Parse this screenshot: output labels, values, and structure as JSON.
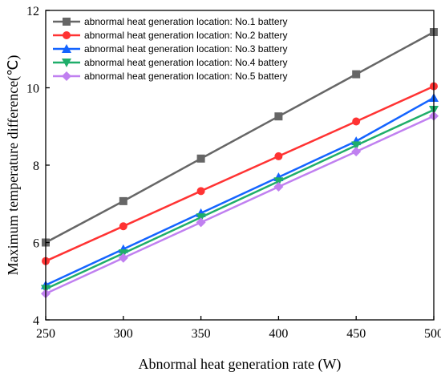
{
  "chart_data": {
    "type": "line",
    "xlabel": "Abnormal heat generation rate (W)",
    "ylabel": "Maximum temperature difference(℃)",
    "xlim": [
      250,
      500
    ],
    "ylim": [
      4,
      12
    ],
    "xticks": [
      250,
      300,
      350,
      400,
      450,
      500
    ],
    "yticks": [
      4,
      6,
      8,
      10,
      12
    ],
    "grid": false,
    "legend_position": "top-left",
    "x": [
      250,
      300,
      350,
      400,
      450,
      500
    ],
    "series": [
      {
        "name": "abnormal heat generation location: No.1 battery",
        "color": "#666666",
        "marker": "square",
        "values": [
          6.0,
          7.07,
          8.17,
          9.26,
          10.35,
          11.44
        ]
      },
      {
        "name": "abnormal heat generation location: No.2 battery",
        "color": "#ff3333",
        "marker": "circle",
        "values": [
          5.52,
          6.42,
          7.33,
          8.23,
          9.13,
          10.04
        ]
      },
      {
        "name": "abnormal heat generation location: No.3 battery",
        "color": "#1464ff",
        "marker": "triangle-up",
        "values": [
          4.9,
          5.83,
          6.76,
          7.69,
          8.62,
          9.74
        ]
      },
      {
        "name": "abnormal heat generation location: No.4 battery",
        "color": "#1fae6a",
        "marker": "triangle-down",
        "values": [
          4.8,
          5.72,
          6.65,
          7.58,
          8.51,
          9.43
        ]
      },
      {
        "name": "abnormal heat generation location: No.5 battery",
        "color": "#c080f0",
        "marker": "diamond",
        "values": [
          4.68,
          5.6,
          6.52,
          7.44,
          8.35,
          9.27
        ]
      }
    ]
  }
}
